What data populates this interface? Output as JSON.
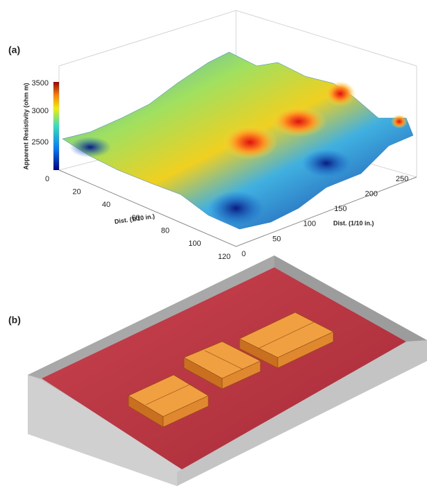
{
  "panel_a": {
    "label": "(a)",
    "z_axis_label": "Apparent Resistivity (ohm m)",
    "z_ticks": [
      "2500",
      "3000",
      "3500"
    ],
    "x_axis_label": "Dist. (1/10 in.)",
    "x_ticks": [
      "0",
      "20",
      "40",
      "60",
      "80",
      "100",
      "120"
    ],
    "y_axis_label": "Dist. (1/10 in.)",
    "y_ticks": [
      "0",
      "50",
      "100",
      "150",
      "200",
      "250"
    ]
  },
  "panel_b": {
    "label": "(b)"
  }
}
